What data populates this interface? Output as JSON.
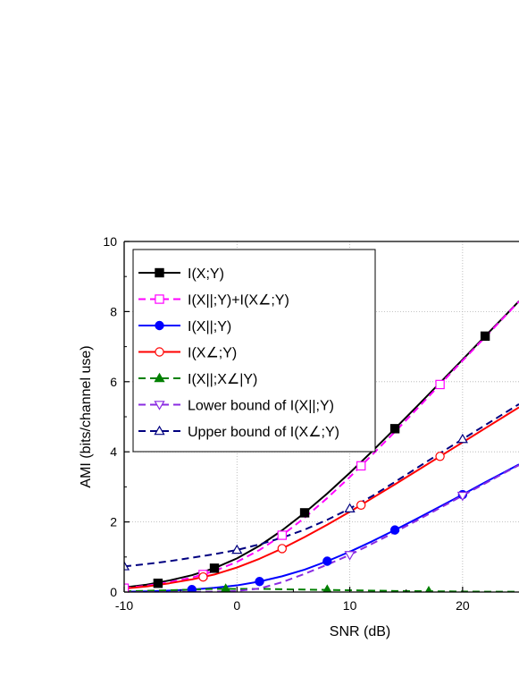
{
  "chart_data": {
    "type": "line",
    "title": "",
    "xlabel": "SNR (dB)",
    "ylabel": "AMI (bits/channel use)",
    "xlim": [
      -10,
      25
    ],
    "ylim": [
      0,
      10
    ],
    "xticks": [
      -10,
      0,
      10,
      20
    ],
    "yticks": [
      0,
      2,
      4,
      6,
      8,
      10
    ],
    "grid": true,
    "legend_position": "top-left",
    "series": [
      {
        "name": "I(X;Y)",
        "color": "#000000",
        "line_style": "solid",
        "marker": "filled-square",
        "x": [
          -10,
          -8,
          -6,
          -4,
          -2,
          0,
          2,
          4,
          6,
          8,
          10,
          12,
          14,
          16,
          18,
          20,
          22,
          24,
          25
        ],
        "y": [
          0.13,
          0.21,
          0.33,
          0.48,
          0.68,
          0.96,
          1.32,
          1.76,
          2.26,
          2.81,
          3.4,
          4.02,
          4.66,
          5.31,
          5.97,
          6.63,
          7.3,
          7.96,
          8.3
        ],
        "marker_x": [
          -7,
          -2,
          6,
          14,
          22
        ],
        "marker_y": [
          0.25,
          0.68,
          2.26,
          4.66,
          7.3
        ]
      },
      {
        "name": "I(X||;Y)+I(X∠;Y)",
        "color": "#ff00ff",
        "line_style": "dashed",
        "marker": "open-square",
        "x": [
          -10,
          -8,
          -6,
          -4,
          -2,
          0,
          2,
          4,
          6,
          8,
          10,
          12,
          14,
          16,
          18,
          20,
          22,
          24,
          25
        ],
        "y": [
          0.11,
          0.18,
          0.28,
          0.41,
          0.6,
          0.86,
          1.2,
          1.62,
          2.12,
          2.68,
          3.28,
          3.92,
          4.57,
          5.24,
          5.92,
          6.6,
          7.27,
          7.95,
          8.29
        ],
        "marker_x": [
          -10,
          -3,
          4,
          11,
          18
        ],
        "marker_y": [
          0.11,
          0.5,
          1.62,
          3.6,
          5.92
        ]
      },
      {
        "name": "I(X||;Y)",
        "color": "#0000ff",
        "line_style": "solid",
        "marker": "filled-circle",
        "x": [
          -10,
          -8,
          -6,
          -4,
          -2,
          0,
          2,
          4,
          6,
          8,
          10,
          12,
          14,
          16,
          18,
          20,
          22,
          24,
          25
        ],
        "y": [
          0.01,
          0.02,
          0.04,
          0.07,
          0.12,
          0.19,
          0.3,
          0.45,
          0.64,
          0.88,
          1.15,
          1.45,
          1.77,
          2.1,
          2.44,
          2.78,
          3.13,
          3.47,
          3.64
        ],
        "marker_x": [
          -4,
          2,
          8,
          14,
          20
        ],
        "marker_y": [
          0.07,
          0.3,
          0.88,
          1.77,
          2.78
        ]
      },
      {
        "name": "I(X∠;Y)",
        "color": "#ff0000",
        "line_style": "solid",
        "marker": "open-circle",
        "x": [
          -10,
          -8,
          -6,
          -4,
          -2,
          0,
          2,
          4,
          6,
          8,
          10,
          12,
          14,
          16,
          18,
          20,
          22,
          24,
          25
        ],
        "y": [
          0.1,
          0.16,
          0.25,
          0.36,
          0.5,
          0.7,
          0.95,
          1.24,
          1.57,
          1.92,
          2.29,
          2.68,
          3.07,
          3.47,
          3.87,
          4.27,
          4.67,
          5.07,
          5.27
        ],
        "marker_x": [
          -3,
          4,
          11,
          18
        ],
        "marker_y": [
          0.43,
          1.24,
          2.48,
          3.87
        ]
      },
      {
        "name": "I(X||;X∠|Y)",
        "color": "#008000",
        "line_style": "dashed",
        "marker": "filled-triangle-up",
        "x": [
          -10,
          -6,
          -2,
          2,
          6,
          10,
          14,
          18,
          22,
          25
        ],
        "y": [
          0.02,
          0.05,
          0.09,
          0.09,
          0.07,
          0.05,
          0.03,
          0.02,
          0.01,
          0.01
        ],
        "marker_x": [
          -1,
          8,
          17
        ],
        "marker_y": [
          0.09,
          0.06,
          0.02
        ]
      },
      {
        "name": "Lower bound of I(X||;Y)",
        "color": "#8a2be2",
        "line_style": "dashed",
        "marker": "open-triangle-down",
        "x": [
          -10,
          -6,
          -2,
          0,
          2,
          4,
          6,
          8,
          10,
          12,
          14,
          16,
          18,
          20,
          22,
          24,
          25
        ],
        "y": [
          0.0,
          0.0,
          0.01,
          0.03,
          0.1,
          0.28,
          0.52,
          0.78,
          1.06,
          1.38,
          1.71,
          2.05,
          2.4,
          2.75,
          3.1,
          3.45,
          3.62
        ],
        "marker_x": [
          10,
          20
        ],
        "marker_y": [
          1.06,
          2.75
        ]
      },
      {
        "name": "Upper bound of I(X∠;Y)",
        "color": "#000080",
        "line_style": "dashed",
        "marker": "open-triangle-up",
        "x": [
          -10,
          -8,
          -6,
          -4,
          -2,
          0,
          2,
          4,
          6,
          8,
          10,
          12,
          14,
          16,
          18,
          20,
          22,
          24,
          25
        ],
        "y": [
          0.73,
          0.8,
          0.88,
          0.98,
          1.08,
          1.2,
          1.36,
          1.55,
          1.78,
          2.06,
          2.38,
          2.74,
          3.14,
          3.55,
          3.96,
          4.36,
          4.76,
          5.16,
          5.36
        ],
        "marker_x": [
          -10,
          0,
          10,
          20
        ],
        "marker_y": [
          0.73,
          1.2,
          2.38,
          4.36
        ]
      }
    ]
  }
}
